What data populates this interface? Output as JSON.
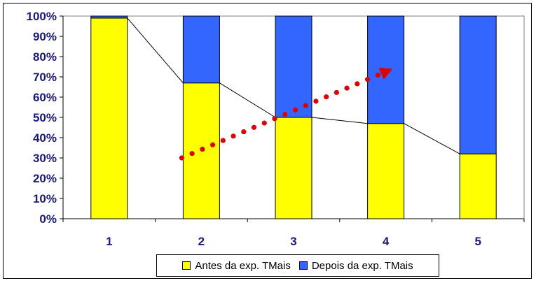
{
  "chart_data": {
    "type": "bar",
    "stacked": true,
    "categories": [
      "1",
      "2",
      "3",
      "4",
      "5"
    ],
    "series": [
      {
        "name": "Antes da exp. TMais",
        "values": [
          99,
          67,
          50,
          47,
          32
        ],
        "color": "#ffff00"
      },
      {
        "name": "Depois da exp. TMais",
        "values": [
          1,
          33,
          50,
          53,
          68
        ],
        "color": "#3366ff"
      }
    ],
    "y_ticks": [
      "0%",
      "10%",
      "20%",
      "30%",
      "40%",
      "50%",
      "60%",
      "70%",
      "80%",
      "90%",
      "100%"
    ],
    "ylim": [
      0,
      100
    ],
    "trend_line": {
      "description": "thin black line connecting tops of yellow segments",
      "values": [
        99,
        67,
        50,
        47,
        32
      ]
    },
    "annotation_arrow": {
      "style": "red dotted arrow",
      "from": {
        "x": 2,
        "y": 30
      },
      "to": {
        "x": 4,
        "y": 74
      },
      "color": "#e00000"
    },
    "legend_position": "bottom",
    "grid": false
  }
}
